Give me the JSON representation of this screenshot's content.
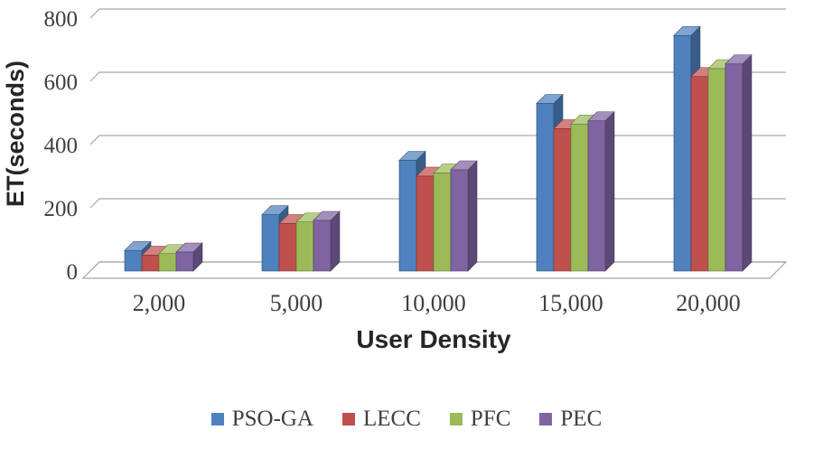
{
  "chart_data": {
    "type": "bar",
    "style": "3d-clustered",
    "title": "",
    "xlabel": "User Density",
    "ylabel": "ET(seconds)",
    "ylim": [
      0,
      800
    ],
    "yticks": [
      0,
      200,
      400,
      600,
      800
    ],
    "grid": true,
    "legend_position": "bottom",
    "categories": [
      "2,000",
      "5,000",
      "10,000",
      "15,000",
      "20,000"
    ],
    "series": [
      {
        "name": "PSO-GA",
        "color": "#4E81BD",
        "values": [
          65,
          178,
          350,
          530,
          745
        ]
      },
      {
        "name": "LECC",
        "color": "#C0504D",
        "values": [
          50,
          150,
          300,
          450,
          615
        ]
      },
      {
        "name": "PFC",
        "color": "#9BBB59",
        "values": [
          55,
          155,
          310,
          465,
          640
        ]
      },
      {
        "name": "PEC",
        "color": "#8064A2",
        "values": [
          60,
          160,
          320,
          475,
          655
        ]
      }
    ],
    "colors": {
      "gridline": "#a6a6a6",
      "tick_text": "#3f3f3f",
      "axis_title_text": "#262626"
    }
  }
}
